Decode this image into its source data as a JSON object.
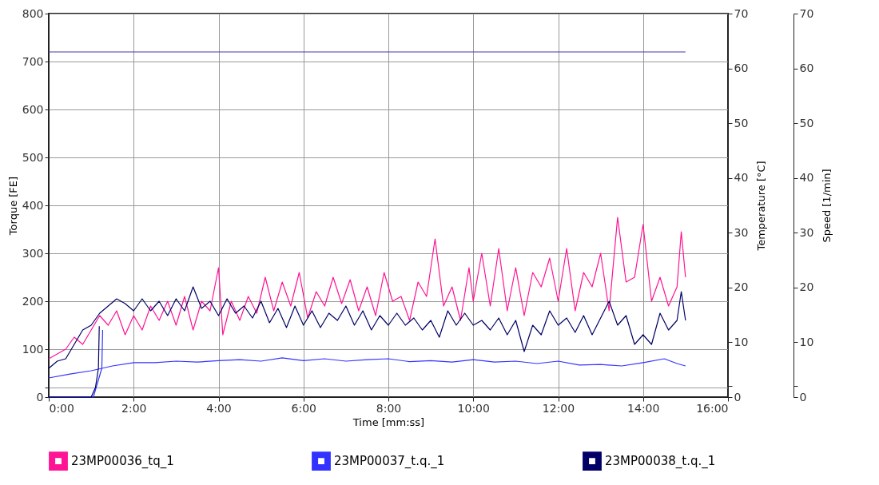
{
  "chart_data": {
    "type": "line",
    "xlabel": "Time [mm:ss]",
    "ylabel": "Torque [FE]",
    "y2label": "Temperature [°C]",
    "y3label": "Speed [1/min]",
    "xlim": [
      0,
      16
    ],
    "xticks": [
      {
        "value": 0,
        "label": "0:00"
      },
      {
        "value": 2,
        "label": "2:00"
      },
      {
        "value": 4,
        "label": "4:00"
      },
      {
        "value": 6,
        "label": "6:00"
      },
      {
        "value": 8,
        "label": "8:00"
      },
      {
        "value": 10,
        "label": "10:00"
      },
      {
        "value": 12,
        "label": "12:00"
      },
      {
        "value": 14,
        "label": "14:00"
      },
      {
        "value": 16,
        "label": "16:00"
      }
    ],
    "ylim": [
      0,
      800
    ],
    "yticks": [
      0,
      {
        "value": 20,
        "label": null
      },
      100,
      200,
      300,
      400,
      500,
      600,
      700,
      800
    ],
    "y2lim": [
      0,
      70
    ],
    "y2ticks": [
      0,
      {
        "value": 2,
        "label": null
      },
      10,
      20,
      30,
      40,
      50,
      60,
      70
    ],
    "y3lim": [
      0,
      70
    ],
    "y3ticks": [
      0,
      {
        "value": 2,
        "label": null
      },
      10,
      20,
      30,
      40,
      50,
      60,
      70
    ],
    "grid": true,
    "legend": "bottom",
    "line_style": "solid",
    "marker": "none",
    "series": [
      {
        "name": "23MP00036_tq_1",
        "color": "#ff1493",
        "x": [
          0,
          0.2,
          0.4,
          0.6,
          0.8,
          1.0,
          1.2,
          1.4,
          1.6,
          1.8,
          2.0,
          2.2,
          2.4,
          2.6,
          2.8,
          3.0,
          3.2,
          3.4,
          3.6,
          3.8,
          4.0,
          4.1,
          4.3,
          4.5,
          4.7,
          4.9,
          5.1,
          5.3,
          5.5,
          5.7,
          5.9,
          6.1,
          6.3,
          6.5,
          6.7,
          6.9,
          7.1,
          7.3,
          7.5,
          7.7,
          7.9,
          8.1,
          8.3,
          8.5,
          8.7,
          8.9,
          9.1,
          9.3,
          9.5,
          9.7,
          9.9,
          10.0,
          10.2,
          10.4,
          10.6,
          10.8,
          11.0,
          11.2,
          11.4,
          11.6,
          11.8,
          12.0,
          12.2,
          12.4,
          12.6,
          12.8,
          13.0,
          13.2,
          13.4,
          13.6,
          13.8,
          14.0,
          14.2,
          14.4,
          14.6,
          14.8,
          14.9,
          15.0
        ],
        "values": [
          80,
          90,
          100,
          125,
          110,
          140,
          170,
          150,
          180,
          130,
          170,
          140,
          190,
          160,
          200,
          150,
          210,
          140,
          200,
          180,
          270,
          130,
          200,
          160,
          210,
          175,
          250,
          180,
          240,
          190,
          260,
          165,
          220,
          190,
          250,
          195,
          245,
          180,
          230,
          170,
          260,
          200,
          210,
          160,
          240,
          210,
          330,
          190,
          230,
          160,
          270,
          200,
          300,
          190,
          310,
          180,
          270,
          170,
          260,
          230,
          290,
          200,
          310,
          180,
          260,
          230,
          300,
          180,
          375,
          240,
          250,
          360,
          200,
          250,
          190,
          230,
          345,
          250
        ]
      },
      {
        "name": "23MP00037_t.q._1",
        "color": "#3333ff",
        "x": [
          0,
          0.5,
          1.0,
          1.5,
          2.0,
          2.5,
          3.0,
          3.5,
          4.0,
          4.5,
          5.0,
          5.5,
          6.0,
          6.5,
          7.0,
          7.5,
          8.0,
          8.5,
          9.0,
          9.5,
          10.0,
          10.5,
          11.0,
          11.5,
          12.0,
          12.5,
          13.0,
          13.5,
          14.0,
          14.5,
          14.8,
          15.0
        ],
        "values": [
          40,
          48,
          55,
          65,
          72,
          72,
          75,
          73,
          76,
          78,
          75,
          82,
          76,
          80,
          75,
          78,
          80,
          74,
          76,
          73,
          78,
          73,
          75,
          70,
          75,
          67,
          68,
          65,
          72,
          80,
          70,
          65
        ]
      },
      {
        "name": "23MP00038_t.q._1",
        "color": "#000066",
        "x": [
          0,
          0.2,
          0.4,
          0.6,
          0.8,
          1.0,
          1.2,
          1.4,
          1.6,
          1.8,
          2.0,
          2.2,
          2.4,
          2.6,
          2.8,
          3.0,
          3.2,
          3.4,
          3.6,
          3.8,
          4.0,
          4.2,
          4.4,
          4.6,
          4.8,
          5.0,
          5.2,
          5.4,
          5.6,
          5.8,
          6.0,
          6.2,
          6.4,
          6.6,
          6.8,
          7.0,
          7.2,
          7.4,
          7.6,
          7.8,
          8.0,
          8.2,
          8.4,
          8.6,
          8.8,
          9.0,
          9.2,
          9.4,
          9.6,
          9.8,
          10.0,
          10.2,
          10.4,
          10.6,
          10.8,
          11.0,
          11.2,
          11.4,
          11.6,
          11.8,
          12.0,
          12.2,
          12.4,
          12.6,
          12.8,
          13.0,
          13.2,
          13.4,
          13.6,
          13.8,
          14.0,
          14.2,
          14.4,
          14.6,
          14.8,
          14.9,
          15.0
        ],
        "values": [
          60,
          75,
          80,
          110,
          140,
          150,
          175,
          190,
          205,
          195,
          180,
          205,
          180,
          200,
          170,
          205,
          180,
          230,
          185,
          200,
          170,
          205,
          175,
          190,
          165,
          200,
          155,
          185,
          145,
          190,
          150,
          180,
          145,
          175,
          160,
          190,
          150,
          180,
          140,
          170,
          150,
          175,
          150,
          165,
          140,
          160,
          125,
          180,
          150,
          175,
          150,
          160,
          140,
          165,
          130,
          160,
          95,
          150,
          130,
          180,
          150,
          165,
          135,
          170,
          130,
          165,
          200,
          150,
          170,
          110,
          130,
          110,
          175,
          140,
          160,
          220,
          160
        ]
      },
      {
        "color": "#4b3aa8",
        "x": [
          0,
          15
        ],
        "values": [
          720,
          720
        ]
      },
      {
        "color": "#3333ff",
        "x": [
          0,
          1.05,
          1.15,
          1.25,
          1.27
        ],
        "values": [
          0,
          0,
          30,
          60,
          140
        ]
      },
      {
        "color": "#000066",
        "x": [
          0,
          1.0,
          1.1,
          1.17,
          1.19
        ],
        "values": [
          0,
          0,
          20,
          60,
          148
        ]
      }
    ]
  }
}
